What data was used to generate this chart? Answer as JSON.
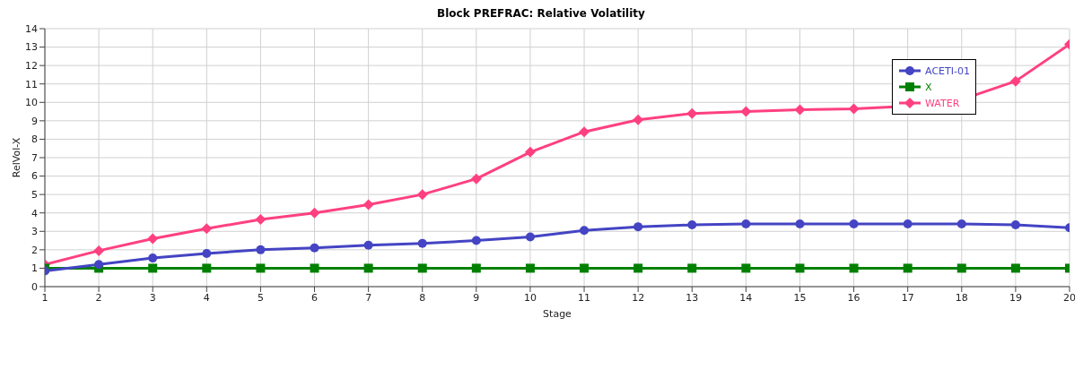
{
  "chart_data": {
    "type": "line",
    "title": "Block PREFRAC: Relative Volatility",
    "xlabel": "Stage",
    "ylabel": "RelVol-X",
    "x": [
      1,
      2,
      3,
      4,
      5,
      6,
      7,
      8,
      9,
      10,
      11,
      12,
      13,
      14,
      15,
      16,
      17,
      18,
      19,
      20
    ],
    "series": [
      {
        "name": "ACETI-01",
        "color": "#4444c4",
        "marker": "circle",
        "values": [
          0.85,
          1.2,
          1.55,
          1.8,
          2.0,
          2.1,
          2.25,
          2.35,
          2.5,
          2.7,
          3.05,
          3.25,
          3.35,
          3.4,
          3.4,
          3.4,
          3.4,
          3.4,
          3.35,
          3.2
        ]
      },
      {
        "name": "X",
        "color": "#008000",
        "marker": "square",
        "values": [
          1,
          1,
          1,
          1,
          1,
          1,
          1,
          1,
          1,
          1,
          1,
          1,
          1,
          1,
          1,
          1,
          1,
          1,
          1,
          1
        ]
      },
      {
        "name": "WATER",
        "color": "#ff4080",
        "marker": "diamond",
        "values": [
          1.2,
          1.95,
          2.6,
          3.15,
          3.65,
          4.0,
          4.45,
          5.0,
          5.85,
          7.3,
          8.4,
          9.05,
          9.4,
          9.5,
          9.6,
          9.65,
          9.8,
          10.15,
          11.15,
          13.15
        ]
      }
    ],
    "xlim": [
      1,
      20
    ],
    "xticks": [
      1,
      2,
      3,
      4,
      5,
      6,
      7,
      8,
      9,
      10,
      11,
      12,
      13,
      14,
      15,
      16,
      17,
      18,
      19,
      20
    ],
    "ylim": [
      0,
      14
    ],
    "yticks": [
      0,
      1,
      2,
      3,
      4,
      5,
      6,
      7,
      8,
      9,
      10,
      11,
      12,
      13,
      14
    ],
    "grid": true,
    "legend": "top right",
    "line_style": "solid"
  }
}
